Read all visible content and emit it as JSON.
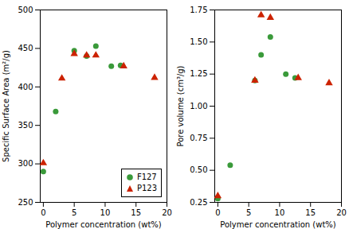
{
  "chart_data": [
    {
      "type": "scatter",
      "xlabel": "Polymer concentration (wt%)",
      "ylabel": "Specific Surface Area (m²/g)",
      "xlim": [
        -0.5,
        20
      ],
      "ylim": [
        250,
        500
      ],
      "xticks": [
        0,
        5,
        10,
        15,
        20
      ],
      "yticks": [
        250,
        300,
        350,
        400,
        450,
        500
      ],
      "grid": false,
      "legend": "lower right",
      "series": [
        {
          "name": "F127",
          "color": "#3a9a3a",
          "marker": "circle",
          "x": [
            0,
            2,
            5,
            7,
            8.5,
            11,
            12.5
          ],
          "values": [
            290,
            368,
            447,
            440,
            453,
            427,
            428
          ]
        },
        {
          "name": "P123",
          "color": "#cc2200",
          "marker": "triangle",
          "x": [
            0,
            3,
            5,
            7,
            8.5,
            13,
            18
          ],
          "values": [
            301,
            411,
            443,
            441,
            441,
            427,
            412
          ]
        }
      ]
    },
    {
      "type": "scatter",
      "xlabel": "Polymer concentration (wt%)",
      "ylabel": "Pore volume (cm³/g)",
      "xlim": [
        -0.5,
        20
      ],
      "ylim": [
        0.25,
        1.75
      ],
      "xticks": [
        0,
        5,
        10,
        15,
        20
      ],
      "yticks": [
        0.25,
        {
          "value": 0.5,
          "label": "0.50"
        },
        0.75,
        {
          "value": 1.0,
          "label": "1.00"
        },
        1.25,
        {
          "value": 1.5,
          "label": "1.50"
        },
        1.75
      ],
      "grid": false,
      "series": [
        {
          "name": "F127",
          "color": "#3a9a3a",
          "marker": "circle",
          "x": [
            0,
            2,
            6,
            7,
            8.5,
            11,
            12.5
          ],
          "values": [
            0.28,
            0.54,
            1.2,
            1.4,
            1.54,
            1.25,
            1.22
          ]
        },
        {
          "name": "P123",
          "color": "#cc2200",
          "marker": "triangle",
          "x": [
            0,
            6,
            7,
            8.5,
            13,
            18
          ],
          "values": [
            0.3,
            1.2,
            1.71,
            1.69,
            1.22,
            1.18
          ]
        }
      ]
    }
  ]
}
